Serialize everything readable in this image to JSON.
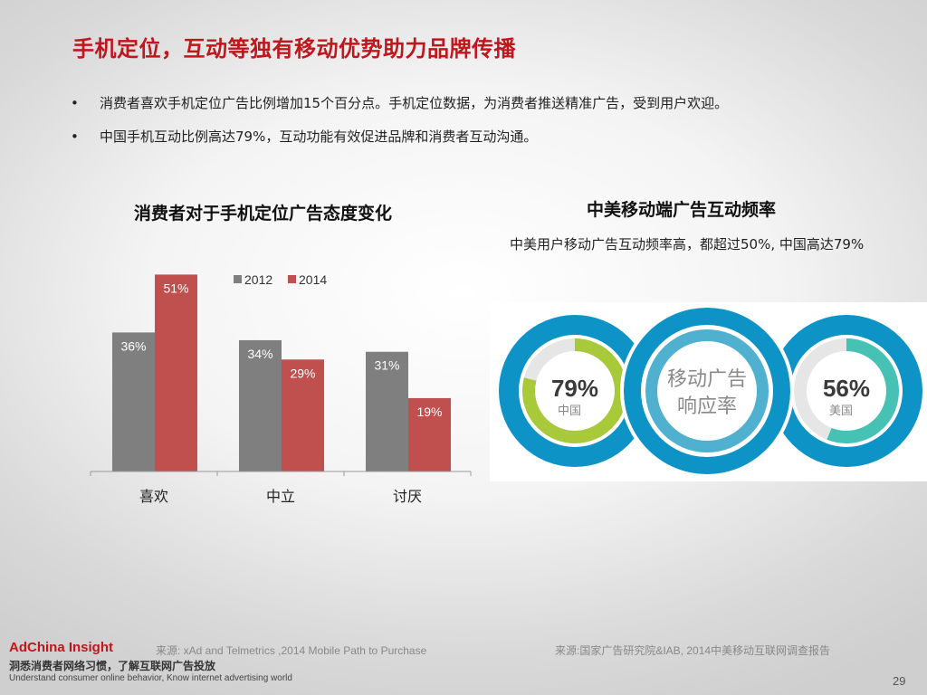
{
  "title": "手机定位，互动等独有移动优势助力品牌传播",
  "bullets": [
    "消费者喜欢手机定位广告比例增加15个百分点。手机定位数据，为消费者推送精准广告，受到用户欢迎。",
    "中国手机互动比例高达79%，互动功能有效促进品牌和消费者互动沟通。"
  ],
  "bullet_symbol": "•",
  "left_chart_title": "消费者对于手机定位广告态度变化",
  "chart_data": {
    "type": "bar",
    "categories": [
      "喜欢",
      "中立",
      "讨厌"
    ],
    "series": [
      {
        "name": "2012",
        "values": [
          36,
          34,
          31
        ],
        "labels": [
          "36%",
          "34%",
          "31%"
        ],
        "color": "#7f7f7f"
      },
      {
        "name": "2014",
        "values": [
          51,
          29,
          19
        ],
        "labels": [
          "51%",
          "29%",
          "19%"
        ],
        "color": "#c0504d"
      }
    ],
    "ylim": [
      0,
      60
    ],
    "legend": "top",
    "grid": false
  },
  "right": {
    "title": "中美移动端广告互动频率",
    "subtitle": "中美用户移动广告互动频率高，都超过50%, 中国高达79%",
    "center_label_line1": "移动广告",
    "center_label_line2": "响应率",
    "china": {
      "value": 79,
      "value_label": "79%",
      "country": "中国",
      "color": "#a8c93a"
    },
    "usa": {
      "value": 56,
      "value_label": "56%",
      "country": "美国",
      "color": "#45c2b3"
    },
    "ring_color": "#0e93c7"
  },
  "footer": {
    "logo": "AdChina Insight",
    "slogan": "洞悉消费者网络习惯，了解互联网广告投放",
    "tagline": "Understand consumer online behavior, Know internet advertising world",
    "source_left": "来源: xAd and Telmetrics ,2014 Mobile Path to Purchase",
    "source_right": "来源:国家广告研究院&IAB, 2014中美移动互联网调查报告",
    "page": "29"
  }
}
